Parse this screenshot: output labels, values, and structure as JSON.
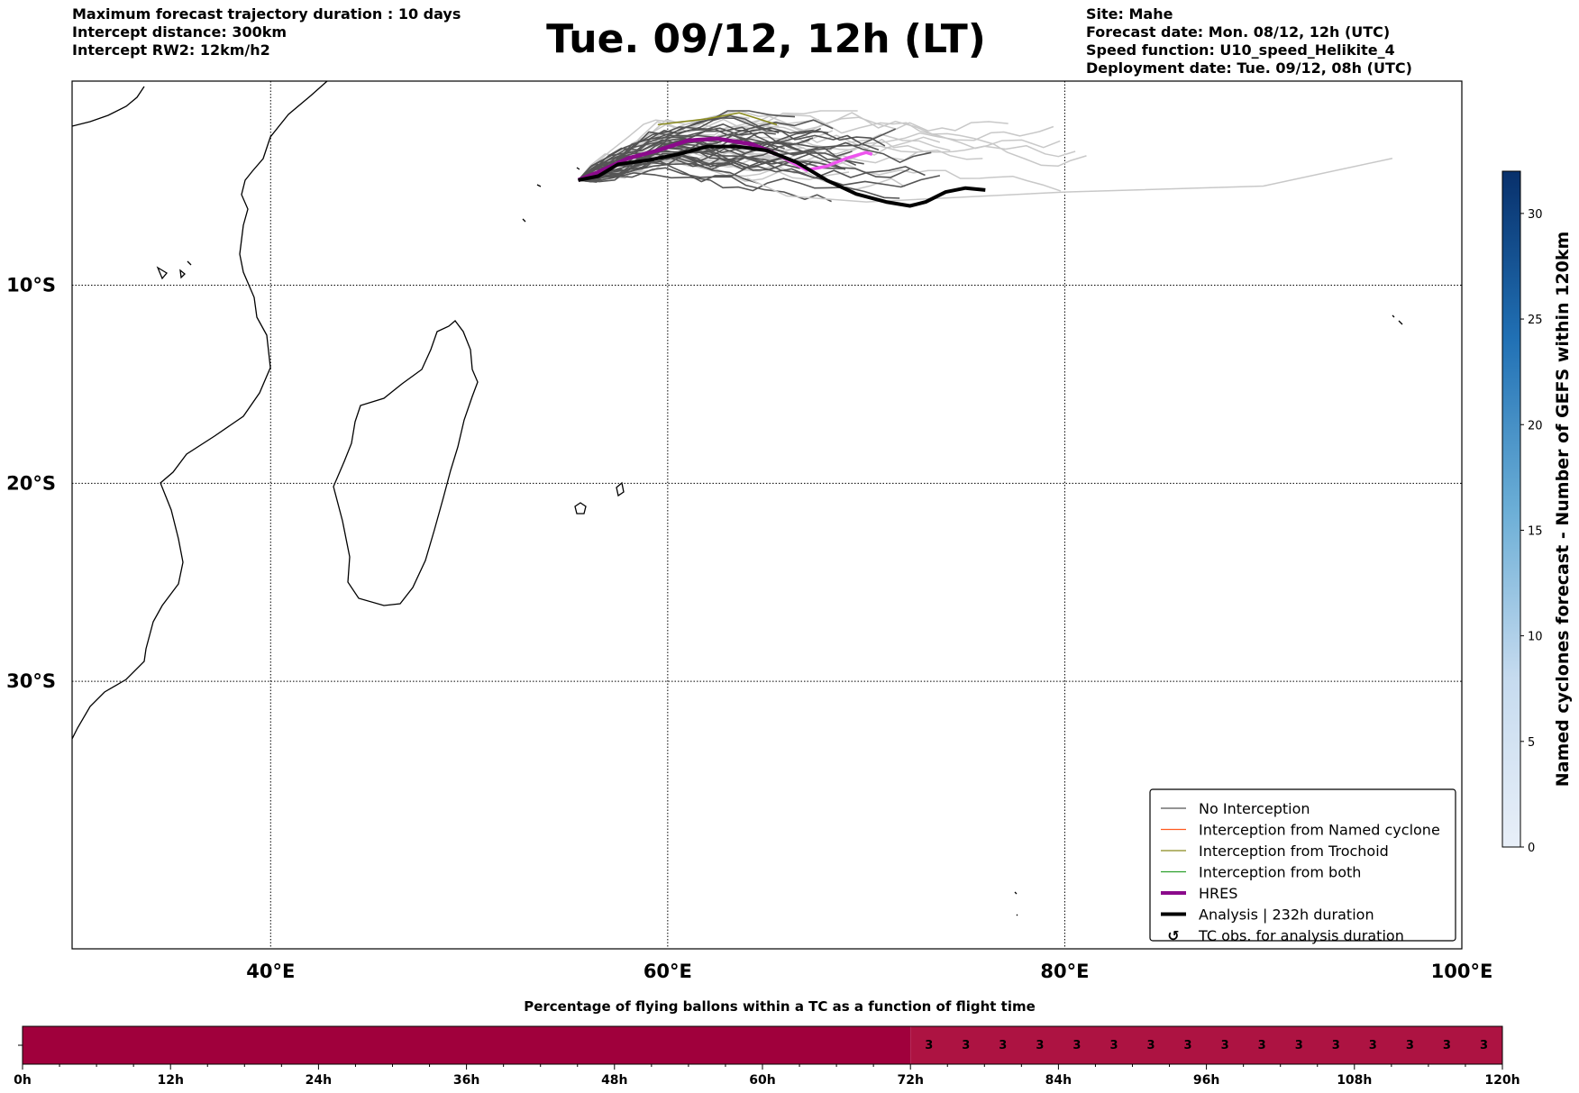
{
  "header": {
    "left_lines": [
      "Maximum forecast trajectory duration : 10 days",
      "Intercept distance: 300km",
      "Intercept RW2: 12km/h2"
    ],
    "title": "Tue. 09/12, 12h (LT)",
    "right_lines": [
      "Site: Mahe",
      "Forecast date: Mon. 08/12, 12h (UTC)",
      "Speed function: U10_speed_Helikite_4",
      "Deployment date: Tue. 09/12, 08h (UTC)"
    ]
  },
  "chart_data": [
    {
      "type": "line",
      "map": {
        "lon_range": [
          30,
          100
        ],
        "lat_range": [
          -43.5,
          0.3
        ],
        "x_ticks": [
          "40°E",
          "60°E",
          "80°E",
          "100°E"
        ],
        "x_tick_values": [
          40,
          60,
          80,
          100
        ],
        "y_ticks": [
          "10°S",
          "20°S",
          "30°S"
        ],
        "y_tick_values": [
          -10,
          -20,
          -30
        ],
        "grid": true
      },
      "colors": {
        "no_interception": "#555555",
        "no_interception_light": "#c8c8c8",
        "named_cyclone": "#ff5a1f",
        "trochoid": "#8a8a1e",
        "both": "#2ca02c",
        "hres": "#8b0a8b",
        "hres_late": "#ee55ee",
        "analysis": "#000000",
        "coast": "#000000"
      },
      "series": [
        {
          "name": "HRES",
          "points": [
            [
              55.5,
              -4.7
            ],
            [
              56.5,
              -4.3
            ],
            [
              58,
              -3.6
            ],
            [
              59.5,
              -3.2
            ],
            [
              61,
              -2.7
            ],
            [
              62.5,
              -2.6
            ],
            [
              64.3,
              -2.9
            ],
            [
              65.5,
              -3.4
            ],
            [
              67,
              -4.2
            ],
            [
              68,
              -4.0
            ],
            [
              69,
              -3.6
            ],
            [
              70,
              -3.3
            ],
            [
              70.3,
              -3.4
            ]
          ]
        },
        {
          "name": "Analysis | 232h duration",
          "points": [
            [
              55.5,
              -4.7
            ],
            [
              56.5,
              -4.5
            ],
            [
              57.5,
              -3.9
            ],
            [
              59,
              -3.7
            ],
            [
              60.5,
              -3.4
            ],
            [
              62,
              -3.0
            ],
            [
              63.5,
              -3.0
            ],
            [
              65,
              -3.2
            ],
            [
              66.5,
              -3.8
            ],
            [
              68,
              -4.7
            ],
            [
              69.5,
              -5.4
            ],
            [
              71,
              -5.8
            ],
            [
              72.2,
              -6.0
            ],
            [
              73,
              -5.8
            ],
            [
              74,
              -5.3
            ],
            [
              75,
              -5.1
            ],
            [
              76,
              -5.2
            ]
          ]
        }
      ],
      "legend": {
        "position": "bottom-right",
        "entries": [
          "No Interception",
          "Interception from Named cyclone",
          "Interception from Trochoid",
          "Interception from both",
          "HRES",
          "Analysis | 232h duration",
          "TC obs. for analysis duration"
        ],
        "tc_symbol": "↺"
      }
    },
    {
      "type": "heatmap",
      "colorbar": {
        "label": "Named cyclones forecast - Number of GEFS within 120km",
        "ticks": [
          "0",
          "5",
          "10",
          "15",
          "20",
          "25",
          "30"
        ],
        "tick_values": [
          0,
          5,
          10,
          15,
          20,
          25,
          30
        ],
        "range": [
          0,
          32
        ],
        "color_low": "#e6eef8",
        "color_high": "#08306b"
      }
    },
    {
      "type": "bar",
      "title": "Percentage of flying ballons within a TC as a function of flight time",
      "x_ticks": [
        "0h",
        "12h",
        "24h",
        "36h",
        "48h",
        "60h",
        "72h",
        "84h",
        "96h",
        "108h",
        "120h"
      ],
      "x_tick_values": [
        0,
        12,
        24,
        36,
        48,
        60,
        72,
        84,
        96,
        108,
        120
      ],
      "segments": [
        {
          "start_h": 0,
          "end_h": 72,
          "value": null,
          "color": "#a0003c"
        },
        {
          "start_h": 72,
          "end_h": 120,
          "value": 3,
          "color": "#ad1342"
        }
      ],
      "cell_values": [
        3,
        3,
        3,
        3,
        3,
        3,
        3,
        3,
        3,
        3,
        3,
        3,
        3,
        3,
        3,
        3
      ],
      "cell_width_h": 3
    }
  ]
}
